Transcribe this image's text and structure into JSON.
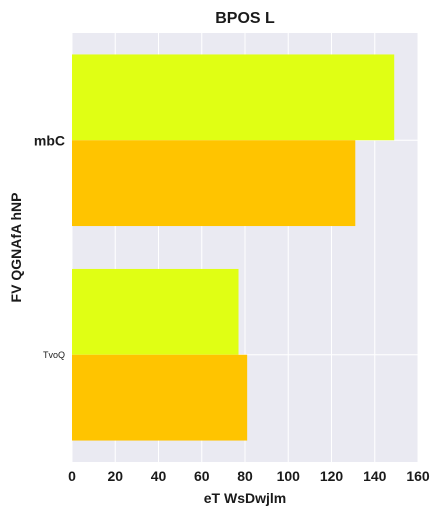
{
  "chart_data": {
    "type": "bar",
    "orientation": "horizontal",
    "title": "BPOS L",
    "xlabel": "eT WsDwjlm",
    "ylabel": "FV QGNAfA hNP",
    "categories": [
      "mbC",
      "TvoQ"
    ],
    "series": [
      {
        "values": [
          149,
          77
        ],
        "color": "#e0ff14"
      },
      {
        "values": [
          131,
          81
        ],
        "color": "#ffc400"
      }
    ],
    "xlim": [
      0,
      160
    ],
    "xticks": [
      0,
      20,
      40,
      60,
      80,
      100,
      120,
      140,
      160
    ],
    "grid": true,
    "background": "#eaeaf2"
  }
}
